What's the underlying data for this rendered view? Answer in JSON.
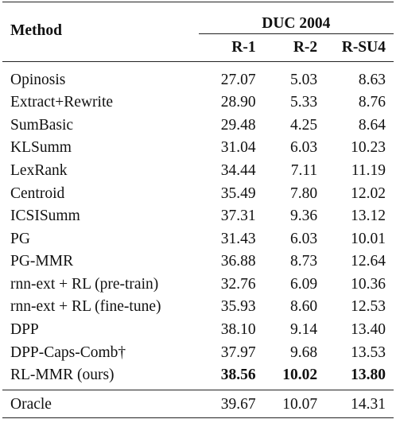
{
  "header": {
    "method": "Method",
    "dataset": "DUC 2004",
    "columns": [
      "R-1",
      "R-2",
      "R-SU4"
    ]
  },
  "rows": [
    {
      "method": "Opinosis",
      "r1": "27.07",
      "r2": "5.03",
      "rsu4": "8.63"
    },
    {
      "method": "Extract+Rewrite",
      "r1": "28.90",
      "r2": "5.33",
      "rsu4": "8.76"
    },
    {
      "method": "SumBasic",
      "r1": "29.48",
      "r2": "4.25",
      "rsu4": "8.64"
    },
    {
      "method": "KLSumm",
      "r1": "31.04",
      "r2": "6.03",
      "rsu4": "10.23"
    },
    {
      "method": "LexRank",
      "r1": "34.44",
      "r2": "7.11",
      "rsu4": "11.19"
    },
    {
      "method": "Centroid",
      "r1": "35.49",
      "r2": "7.80",
      "rsu4": "12.02"
    },
    {
      "method": "ICSISumm",
      "r1": "37.31",
      "r2": "9.36",
      "rsu4": "13.12"
    },
    {
      "method": "PG",
      "r1": "31.43",
      "r2": "6.03",
      "rsu4": "10.01"
    },
    {
      "method": "PG-MMR",
      "r1": "36.88",
      "r2": "8.73",
      "rsu4": "12.64"
    },
    {
      "method": "rnn-ext + RL (pre-train)",
      "r1": "32.76",
      "r2": "6.09",
      "rsu4": "10.36"
    },
    {
      "method": "rnn-ext + RL (fine-tune)",
      "r1": "35.93",
      "r2": "8.60",
      "rsu4": "12.53"
    },
    {
      "method": "DPP",
      "r1": "38.10",
      "r2": "9.14",
      "rsu4": "13.40"
    },
    {
      "method": "DPP-Caps-Comb†",
      "r1": "37.97",
      "r2": "9.68",
      "rsu4": "13.53"
    },
    {
      "method": "RL-MMR (ours)",
      "r1": "38.56",
      "r2": "10.02",
      "rsu4": "13.80"
    }
  ],
  "oracle": {
    "method": "Oracle",
    "r1": "39.67",
    "r2": "10.07",
    "rsu4": "14.31"
  }
}
